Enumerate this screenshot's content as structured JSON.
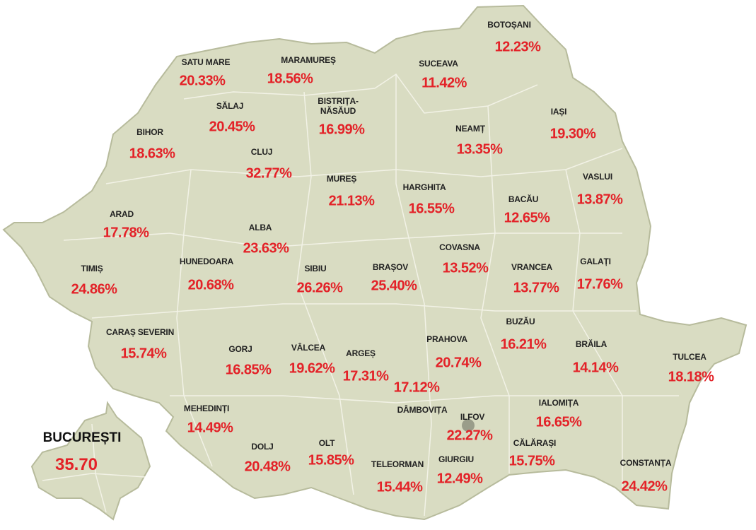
{
  "counties": [
    {
      "name": "SATU MARE",
      "value": "20.33%"
    },
    {
      "name": "MARAMUREȘ",
      "value": "18.56%"
    },
    {
      "name": "BOTOȘANI",
      "value": "12.23%"
    },
    {
      "name": "SUCEAVA",
      "value": "11.42%"
    },
    {
      "name": "BISTRIȚA-NĂSĂUD",
      "value": "16.99%"
    },
    {
      "name": "SĂLAJ",
      "value": "20.45%"
    },
    {
      "name": "BIHOR",
      "value": "18.63%"
    },
    {
      "name": "CLUJ",
      "value": "32.77%"
    },
    {
      "name": "NEAMȚ",
      "value": "13.35%"
    },
    {
      "name": "IAȘI",
      "value": "19.30%"
    },
    {
      "name": "MUREȘ",
      "value": "21.13%"
    },
    {
      "name": "HARGHITA",
      "value": "16.55%"
    },
    {
      "name": "BACĂU",
      "value": "12.65%"
    },
    {
      "name": "VASLUI",
      "value": "13.87%"
    },
    {
      "name": "ARAD",
      "value": "17.78%"
    },
    {
      "name": "ALBA",
      "value": "23.63%"
    },
    {
      "name": "COVASNA",
      "value": "13.52%"
    },
    {
      "name": "HUNEDOARA",
      "value": "20.68%"
    },
    {
      "name": "TIMIȘ",
      "value": "24.86%"
    },
    {
      "name": "SIBIU",
      "value": "26.26%"
    },
    {
      "name": "BRAȘOV",
      "value": "25.40%"
    },
    {
      "name": "VRANCEA",
      "value": "13.77%"
    },
    {
      "name": "GALAȚI",
      "value": "17.76%"
    },
    {
      "name": "BUZĂU",
      "value": "16.21%"
    },
    {
      "name": "CARAȘ SEVERIN",
      "value": "15.74%"
    },
    {
      "name": "GORJ",
      "value": "16.85%"
    },
    {
      "name": "VÂLCEA",
      "value": "19.62%"
    },
    {
      "name": "ARGEȘ",
      "value": "17.31%"
    },
    {
      "name": "PRAHOVA",
      "value": "20.74%"
    },
    {
      "name": "BRĂILA",
      "value": "14.14%"
    },
    {
      "name": "TULCEA",
      "value": "18.18%"
    },
    {
      "name": "DÂMBOVIȚA",
      "value": "17.12%"
    },
    {
      "name": "ILFOV",
      "value": "22.27%"
    },
    {
      "name": "IALOMIȚA",
      "value": "16.65%"
    },
    {
      "name": "MEHEDINȚI",
      "value": "14.49%"
    },
    {
      "name": "DOLJ",
      "value": "20.48%"
    },
    {
      "name": "OLT",
      "value": "15.85%"
    },
    {
      "name": "TELEORMAN",
      "value": "15.44%"
    },
    {
      "name": "GIURGIU",
      "value": "12.49%"
    },
    {
      "name": "CĂLĂRAȘI",
      "value": "15.75%"
    },
    {
      "name": "CONSTANȚA",
      "value": "24.42%"
    }
  ],
  "bucharest": {
    "name": "BUCUREȘTI",
    "value": "35.70"
  }
}
